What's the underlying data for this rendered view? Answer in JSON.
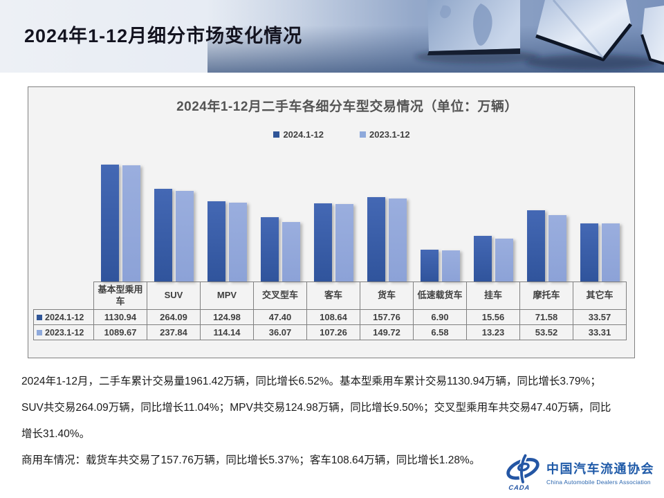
{
  "header": {
    "title": "2024年1-12月细分市场变化情况"
  },
  "chart_data": {
    "type": "bar",
    "title": "2024年1-12月二手车各细分车型交易情况（单位：万辆）",
    "unit": "万辆",
    "scale": "log10",
    "baseline": 1,
    "grid": false,
    "legend_position": "top",
    "data_table": true,
    "panel_background": "#F3F3F3",
    "categories": [
      "基本型乘用车",
      "SUV",
      "MPV",
      "交叉型车",
      "客车",
      "货车",
      "低速载货车",
      "挂车",
      "摩托车",
      "其它车"
    ],
    "series": [
      {
        "name": "2024.1-12",
        "marker": "#2F5597",
        "fill_top": "#4468B4",
        "fill_bottom": "#30549C",
        "values": [
          1130.94,
          264.09,
          124.98,
          47.4,
          108.64,
          157.76,
          6.9,
          15.56,
          71.58,
          33.57
        ]
      },
      {
        "name": "2023.1-12",
        "marker": "#8EA9DB",
        "fill_top": "#9AAEDE",
        "fill_bottom": "#8CA2D7",
        "values": [
          1089.67,
          237.84,
          114.14,
          36.07,
          107.26,
          149.72,
          6.58,
          13.23,
          53.52,
          33.31
        ]
      }
    ]
  },
  "body": {
    "lines": [
      "2024年1-12月，二手车累计交易量1961.42万辆，同比增长6.52%。基本型乘用车累计交易1130.94万辆，同比增长3.79%；",
      "SUV共交易264.09万辆，同比增长11.04%；MPV共交易124.98万辆，同比增长9.50%；交叉型乘用车共交易47.40万辆，同比",
      "增长31.40%。",
      "商用车情况：载货车共交易了157.76万辆，同比增长5.37%；客车108.64万辆，同比增长1.28%。"
    ]
  },
  "logo": {
    "cada": "CADA",
    "name_cn": "中国汽车流通协会",
    "name_en": "China Automobile Dealers Association"
  }
}
